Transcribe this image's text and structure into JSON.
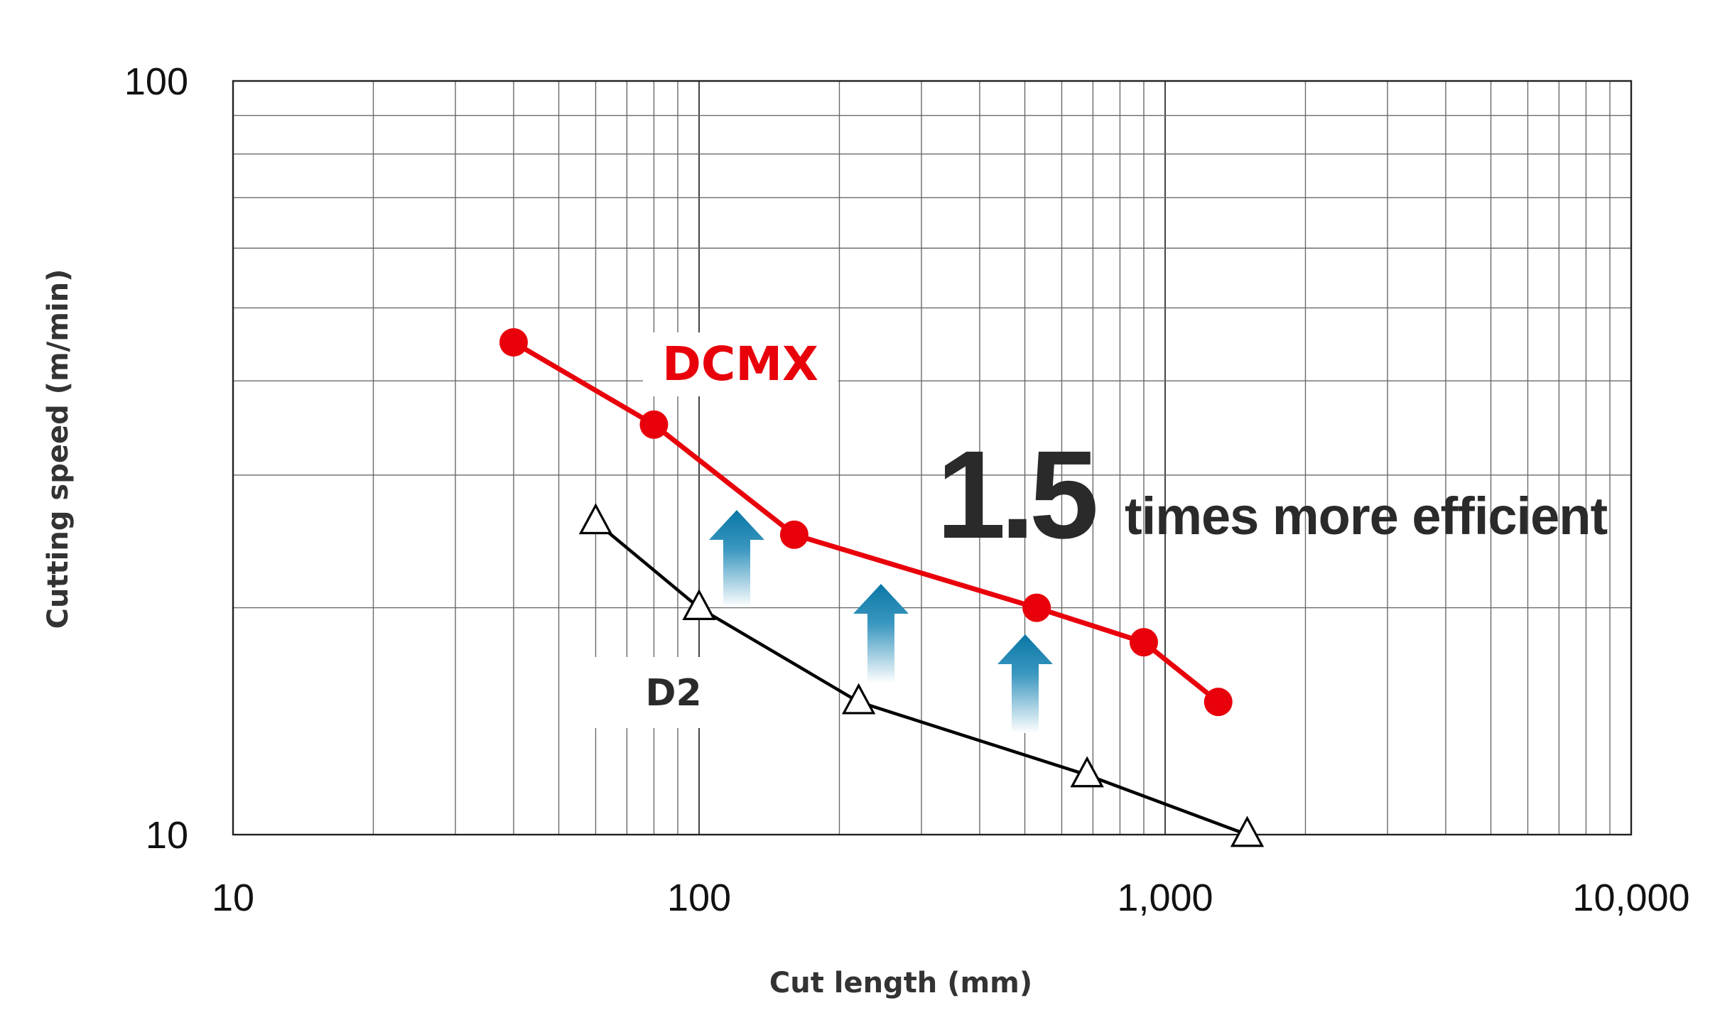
{
  "chart_data": {
    "type": "line",
    "title": "",
    "xlabel": "Cut length (mm)",
    "ylabel": "Cutting speed (m/min)",
    "xscale": "log",
    "yscale": "log",
    "xlim": [
      10,
      10000
    ],
    "ylim": [
      10,
      100
    ],
    "x_ticks": [
      10,
      100,
      1000,
      10000
    ],
    "x_tick_labels": [
      "10",
      "100",
      "1,000",
      "10,000"
    ],
    "y_ticks": [
      10,
      100
    ],
    "y_tick_labels": [
      "10",
      "100"
    ],
    "grid": true,
    "legend": "none",
    "series": [
      {
        "name": "DCMX",
        "color": "#e8000b",
        "marker": "filled-circle",
        "x": [
          40,
          80,
          160,
          530,
          900,
          1300
        ],
        "y": [
          45,
          35,
          25,
          20,
          18,
          15
        ]
      },
      {
        "name": "D2",
        "color": "#000000",
        "marker": "open-triangle",
        "x": [
          60,
          100,
          220,
          680,
          1500
        ],
        "y": [
          26,
          20,
          15,
          12,
          10
        ]
      }
    ],
    "annotation": {
      "big_text": "1.5",
      "small_text": "times more efficient",
      "arrow_color": "#0a77a5"
    }
  }
}
